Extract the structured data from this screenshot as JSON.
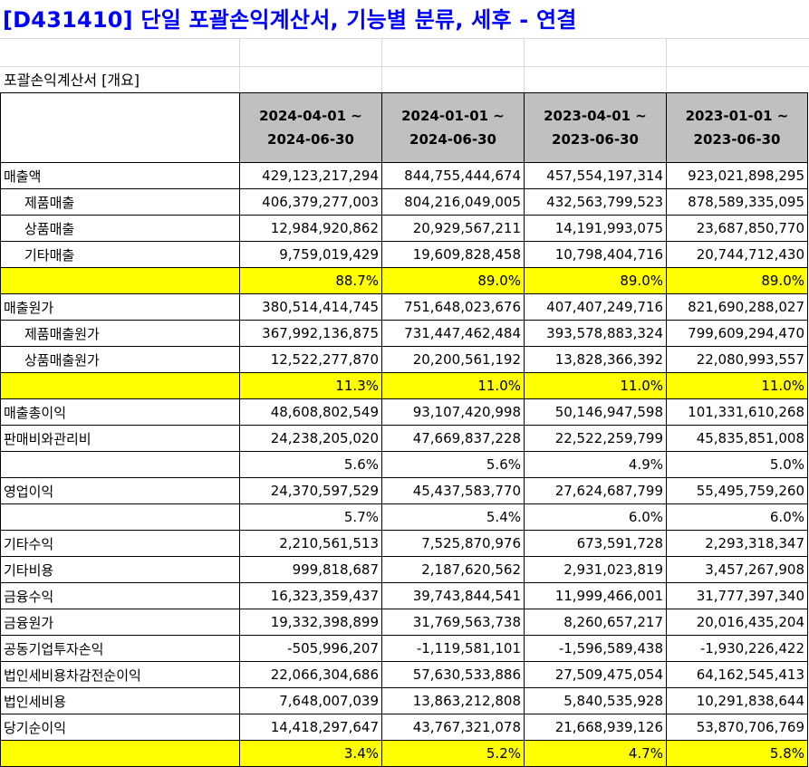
{
  "title": "[D431410] 단일 포괄손익계산서, 기능별 분류, 세후 - 연결",
  "section_label": "포괄손익계산서 [개요]",
  "columns": [
    {
      "line1": "2024-04-01 ~",
      "line2": "2024-06-30"
    },
    {
      "line1": "2024-01-01 ~",
      "line2": "2024-06-30"
    },
    {
      "line1": "2023-04-01 ~",
      "line2": "2023-06-30"
    },
    {
      "line1": "2023-01-01 ~",
      "line2": "2023-06-30"
    }
  ],
  "rows": [
    {
      "label": "매출액",
      "indent": false,
      "highlight": false,
      "values": [
        "429,123,217,294",
        "844,755,444,674",
        "457,554,197,314",
        "923,021,898,295"
      ]
    },
    {
      "label": "제품매출",
      "indent": true,
      "highlight": false,
      "values": [
        "406,379,277,003",
        "804,216,049,005",
        "432,563,799,523",
        "878,589,335,095"
      ]
    },
    {
      "label": "상품매출",
      "indent": true,
      "highlight": false,
      "values": [
        "12,984,920,862",
        "20,929,567,211",
        "14,191,993,075",
        "23,687,850,770"
      ]
    },
    {
      "label": "기타매출",
      "indent": true,
      "highlight": false,
      "values": [
        "9,759,019,429",
        "19,609,828,458",
        "10,798,404,716",
        "20,744,712,430"
      ]
    },
    {
      "label": "",
      "indent": false,
      "highlight": true,
      "values": [
        "88.7%",
        "89.0%",
        "89.0%",
        "89.0%"
      ]
    },
    {
      "label": "매출원가",
      "indent": false,
      "highlight": false,
      "values": [
        "380,514,414,745",
        "751,648,023,676",
        "407,407,249,716",
        "821,690,288,027"
      ]
    },
    {
      "label": "제품매출원가",
      "indent": true,
      "highlight": false,
      "values": [
        "367,992,136,875",
        "731,447,462,484",
        "393,578,883,324",
        "799,609,294,470"
      ]
    },
    {
      "label": "상품매출원가",
      "indent": true,
      "highlight": false,
      "values": [
        "12,522,277,870",
        "20,200,561,192",
        "13,828,366,392",
        "22,080,993,557"
      ]
    },
    {
      "label": "",
      "indent": false,
      "highlight": true,
      "values": [
        "11.3%",
        "11.0%",
        "11.0%",
        "11.0%"
      ]
    },
    {
      "label": "매출총이익",
      "indent": false,
      "highlight": false,
      "values": [
        "48,608,802,549",
        "93,107,420,998",
        "50,146,947,598",
        "101,331,610,268"
      ]
    },
    {
      "label": "판매비와관리비",
      "indent": false,
      "highlight": false,
      "values": [
        "24,238,205,020",
        "47,669,837,228",
        "22,522,259,799",
        "45,835,851,008"
      ]
    },
    {
      "label": "",
      "indent": false,
      "highlight": false,
      "values": [
        "5.6%",
        "5.6%",
        "4.9%",
        "5.0%"
      ]
    },
    {
      "label": "영업이익",
      "indent": false,
      "highlight": false,
      "values": [
        "24,370,597,529",
        "45,437,583,770",
        "27,624,687,799",
        "55,495,759,260"
      ]
    },
    {
      "label": "",
      "indent": false,
      "highlight": false,
      "values": [
        "5.7%",
        "5.4%",
        "6.0%",
        "6.0%"
      ]
    },
    {
      "label": "기타수익",
      "indent": false,
      "highlight": false,
      "values": [
        "2,210,561,513",
        "7,525,870,976",
        "673,591,728",
        "2,293,318,347"
      ]
    },
    {
      "label": "기타비용",
      "indent": false,
      "highlight": false,
      "values": [
        "999,818,687",
        "2,187,620,562",
        "2,931,023,819",
        "3,457,267,908"
      ]
    },
    {
      "label": "금융수익",
      "indent": false,
      "highlight": false,
      "values": [
        "16,323,359,437",
        "39,743,844,541",
        "11,999,466,001",
        "31,777,397,340"
      ]
    },
    {
      "label": "금융원가",
      "indent": false,
      "highlight": false,
      "values": [
        "19,332,398,899",
        "31,769,563,738",
        "8,260,657,217",
        "20,016,435,204"
      ]
    },
    {
      "label": "공동기업투자손익",
      "indent": false,
      "highlight": false,
      "values": [
        "-505,996,207",
        "-1,119,581,101",
        "-1,596,589,438",
        "-1,930,226,422"
      ]
    },
    {
      "label": "법인세비용차감전순이익",
      "indent": false,
      "highlight": false,
      "values": [
        "22,066,304,686",
        "57,630,533,886",
        "27,509,475,054",
        "64,162,545,413"
      ]
    },
    {
      "label": "법인세비용",
      "indent": false,
      "highlight": false,
      "values": [
        "7,648,007,039",
        "13,863,212,808",
        "5,840,535,928",
        "10,291,838,644"
      ]
    },
    {
      "label": "당기순이익",
      "indent": false,
      "highlight": false,
      "values": [
        "14,418,297,647",
        "43,767,321,078",
        "21,668,939,126",
        "53,870,706,769"
      ]
    },
    {
      "label": "",
      "indent": false,
      "highlight": true,
      "values": [
        "3.4%",
        "5.2%",
        "4.7%",
        "5.8%"
      ]
    }
  ]
}
